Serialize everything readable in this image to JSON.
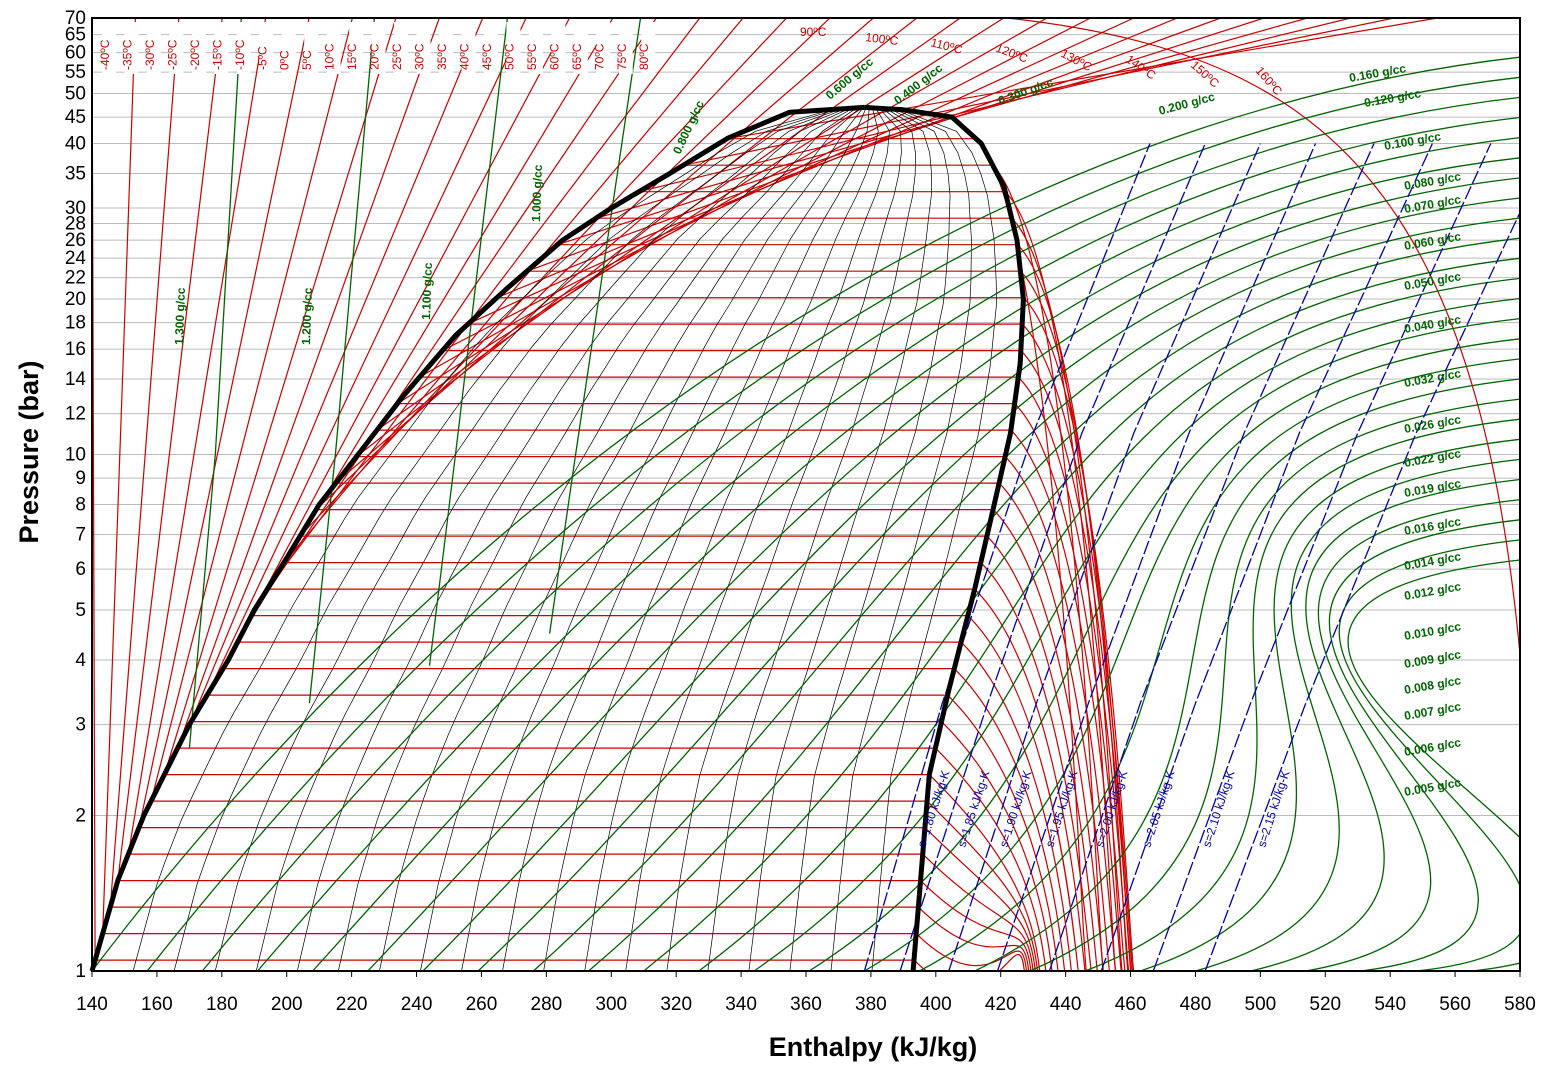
{
  "chart_data": {
    "type": "line",
    "title": "",
    "xlabel": "Enthalpy (kJ/kg)",
    "ylabel": "Pressure (bar)",
    "xlim": [
      140,
      580
    ],
    "ylim": [
      1,
      70
    ],
    "y_scale": "log",
    "x_ticks": [
      140,
      160,
      180,
      200,
      220,
      240,
      260,
      280,
      300,
      320,
      340,
      360,
      380,
      400,
      420,
      440,
      460,
      480,
      500,
      520,
      540,
      560,
      580
    ],
    "y_ticks": [
      1,
      2,
      3,
      4,
      5,
      6,
      7,
      8,
      9,
      10,
      12,
      14,
      16,
      18,
      20,
      22,
      24,
      26,
      28,
      30,
      35,
      40,
      45,
      50,
      55,
      60,
      65,
      70
    ],
    "grid": "horizontal",
    "colors": {
      "saturation_dome": "#000000",
      "isotherms": "#cc0000",
      "isochores": "#006400",
      "isentropes": "#0000aa",
      "quality_lines": "#000000",
      "grid": "#bbbbbb"
    },
    "saturation_dome": {
      "critical_point": {
        "h": 378,
        "p": 47
      },
      "liquid_line": [
        [
          140,
          1
        ],
        [
          148,
          1.5
        ],
        [
          156,
          2
        ],
        [
          170,
          3
        ],
        [
          182,
          4
        ],
        [
          190,
          5
        ],
        [
          200,
          6.3
        ],
        [
          210,
          8
        ],
        [
          222,
          10
        ],
        [
          236,
          13
        ],
        [
          252,
          17
        ],
        [
          268,
          21
        ],
        [
          285,
          26
        ],
        [
          300,
          30
        ],
        [
          318,
          35
        ],
        [
          336,
          41
        ],
        [
          355,
          46
        ],
        [
          378,
          47
        ]
      ],
      "vapor_line": [
        [
          378,
          47
        ],
        [
          390,
          46.5
        ],
        [
          405,
          45
        ],
        [
          414,
          40
        ],
        [
          421,
          33
        ],
        [
          425,
          26
        ],
        [
          427,
          20
        ],
        [
          426,
          15
        ],
        [
          423,
          11
        ],
        [
          418,
          8
        ],
        [
          412,
          5.5
        ],
        [
          404,
          3.5
        ],
        [
          398,
          2.4
        ],
        [
          393,
          1
        ]
      ]
    },
    "isotherms": {
      "unit": "ºC",
      "labels": [
        "-40ºC",
        "-35ºC",
        "-30ºC",
        "-25ºC",
        "-20ºC",
        "-15ºC",
        "-10ºC",
        "-5ºC",
        "0ºC",
        "5ºC",
        "10ºC",
        "15ºC",
        "20ºC",
        "25ºC",
        "30ºC",
        "35ºC",
        "40ºC",
        "45ºC",
        "50ºC",
        "55ºC",
        "60ºC",
        "65ºC",
        "70ºC",
        "75ºC",
        "80ºC",
        "90ºC",
        "100ºC",
        "110ºC",
        "120ºC",
        "130ºC",
        "140ºC",
        "150ºC",
        "160ºC"
      ]
    },
    "isochores": {
      "unit": "g/cc",
      "labels": [
        "1.300 g/cc",
        "1.200 g/cc",
        "1.100 g/cc",
        "1.000 g/cc",
        "0.800 g/cc",
        "0.600 g/cc",
        "0.400 g/cc",
        "0.300 g/cc",
        "0.200 g/cc",
        "0.160 g/cc",
        "0.120 g/cc",
        "0.100 g/cc",
        "0.080 g/cc",
        "0.070 g/cc",
        "0.060 g/cc",
        "0.050 g/cc",
        "0.040 g/cc",
        "0.032 g/cc",
        "0.026 g/cc",
        "0.022 g/cc",
        "0.019 g/cc",
        "0.016 g/cc",
        "0.014 g/cc",
        "0.012 g/cc",
        "0.010 g/cc",
        "0.009 g/cc",
        "0.008 g/cc",
        "0.007 g/cc",
        "0.006 g/cc",
        "0.005 g/cc"
      ]
    },
    "isentropes": {
      "unit": "kJ/kg-K",
      "labels": [
        "s=1.80 kJ/kg-K",
        "s=1.85 kJ/kg-K",
        "s=1.90 kJ/kg-K",
        "s=1.95 kJ/kg-K",
        "s=2.00 kJ/kg-K",
        "s=2.05 kJ/kg-K",
        "s=2.10 kJ/kg-K",
        "s=2.15 kJ/kg-K"
      ],
      "lines": [
        [
          [
            378,
            1
          ],
          [
            402,
            3.3
          ],
          [
            430,
            11
          ],
          [
            466,
            40
          ]
        ],
        [
          [
            389,
            1
          ],
          [
            416,
            3.3
          ],
          [
            445,
            11
          ],
          [
            483,
            40
          ]
        ],
        [
          [
            404,
            1
          ],
          [
            431,
            3.3
          ],
          [
            461,
            11
          ],
          [
            500,
            40
          ]
        ],
        [
          [
            419,
            1
          ],
          [
            447,
            3.3
          ],
          [
            478,
            11
          ],
          [
            517,
            40
          ]
        ],
        [
          [
            435,
            1
          ],
          [
            463,
            3.3
          ],
          [
            495,
            11
          ],
          [
            535,
            40
          ]
        ],
        [
          [
            451,
            1
          ],
          [
            480,
            3.3
          ],
          [
            512,
            11
          ],
          [
            553,
            40
          ]
        ],
        [
          [
            467,
            1
          ],
          [
            497,
            3.3
          ],
          [
            530,
            11
          ],
          [
            571,
            40
          ]
        ],
        [
          [
            483,
            1
          ],
          [
            514,
            3.3
          ],
          [
            548,
            11
          ],
          [
            590,
            40
          ]
        ]
      ]
    }
  }
}
